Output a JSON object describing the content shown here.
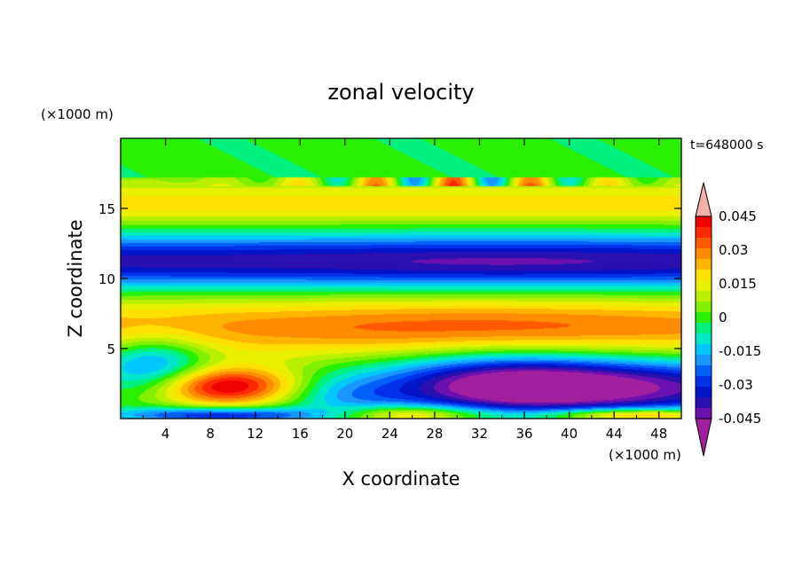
{
  "chart_data": {
    "type": "heatmap",
    "title": "zonal velocity",
    "xlabel": "X coordinate",
    "ylabel": "Z coordinate",
    "x_unit": "(×1000 m)",
    "y_unit": "(×1000 m)",
    "time_label": "t=648000 s",
    "xlim": [
      0,
      50
    ],
    "ylim": [
      0,
      20
    ],
    "x_ticks": [
      "4",
      "8",
      "12",
      "16",
      "20",
      "24",
      "28",
      "32",
      "36",
      "40",
      "44",
      "48"
    ],
    "x_tick_values": [
      4,
      8,
      12,
      16,
      20,
      24,
      28,
      32,
      36,
      40,
      44,
      48
    ],
    "y_ticks": [
      "5",
      "10",
      "15"
    ],
    "y_tick_values": [
      5,
      10,
      15
    ],
    "colorbar": {
      "levels": [
        -0.05,
        -0.045,
        -0.04,
        -0.035,
        -0.03,
        -0.025,
        -0.02,
        -0.015,
        -0.01,
        -0.005,
        0,
        0.005,
        0.01,
        0.015,
        0.02,
        0.025,
        0.03,
        0.035,
        0.04,
        0.045,
        0.05
      ],
      "colors": [
        "#a020a0",
        "#6a10b0",
        "#2a10b0",
        "#0014c8",
        "#0030e8",
        "#0060f8",
        "#1898ff",
        "#00c8ff",
        "#00e8c8",
        "#00f080",
        "#28f000",
        "#80f000",
        "#b8f000",
        "#e8f000",
        "#ffe000",
        "#ffb400",
        "#ff8c00",
        "#ff5a00",
        "#ff2800",
        "#f00000",
        "#f6b0a8"
      ],
      "tick_labels": [
        "0.045",
        "0.03",
        "0.015",
        "0",
        "-0.015",
        "-0.03",
        "-0.045"
      ],
      "tick_values": [
        0.045,
        0.03,
        0.015,
        0,
        -0.015,
        -0.03,
        -0.045
      ]
    }
  }
}
